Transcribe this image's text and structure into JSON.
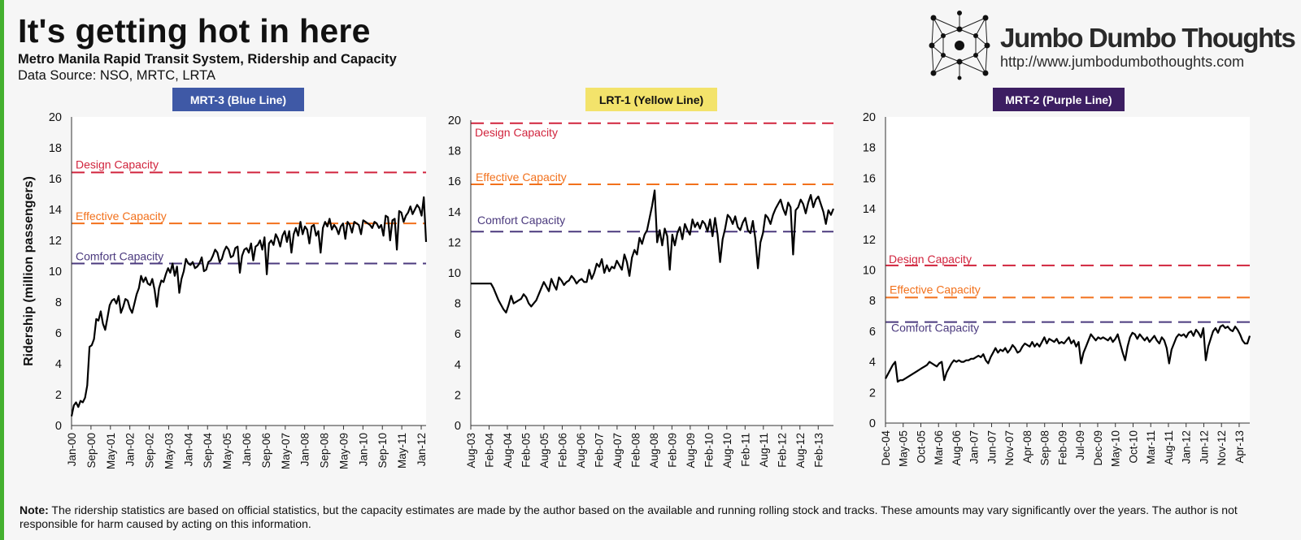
{
  "header": {
    "title": "It's getting hot in here",
    "subtitle": "Metro Manila Rapid Transit System, Ridership and Capacity",
    "source": "Data Source: NSO, MRTC, LRTA"
  },
  "brand": {
    "name": "Jumbo Dumbo Thoughts",
    "url": "http://www.jumbodumbothoughts.com",
    "icon": "network-logo-icon"
  },
  "note": {
    "label": "Note:",
    "text": "The ridership statistics are based on official statistics, but the capacity estimates are made by the author based on the available and running rolling stock and tracks. These amounts may vary significantly over the years. The author is not responsible for harm caused by acting on this information."
  },
  "colors": {
    "accent_green": "#44b02f",
    "design": "#d1243d",
    "effective": "#f2711c",
    "comfort": "#4b3a7e",
    "line": "#000000"
  },
  "chart_data": [
    {
      "type": "line",
      "title": "MRT-3 (Blue Line)",
      "title_bg": "#3f59a6",
      "title_color": "#ffffff",
      "ylabel": "Ridership (million passengers)",
      "ylim": [
        0,
        20
      ],
      "yticks": [
        0,
        2,
        4,
        6,
        8,
        10,
        12,
        14,
        16,
        18,
        20
      ],
      "grid": false,
      "x_start": "2000-01",
      "x_end": "2012-03",
      "xticks": [
        "Jan-00",
        "Sep-00",
        "May-01",
        "Jan-02",
        "Sep-02",
        "May-03",
        "Jan-04",
        "Sep-04",
        "May-05",
        "Jan-06",
        "Sep-06",
        "May-07",
        "Jan-08",
        "Sep-08",
        "May-09",
        "Jan-10",
        "Sep-10",
        "May-11",
        "Jan-12"
      ],
      "capacity": [
        {
          "name": "Design Capacity",
          "value": 16.4,
          "color": "#d1243d"
        },
        {
          "name": "Effective Capacity",
          "value": 13.1,
          "color": "#f2711c"
        },
        {
          "name": "Comfort Capacity",
          "value": 10.5,
          "color": "#4b3a7e"
        }
      ],
      "series": [
        {
          "values": [
            0.6,
            1.3,
            1.5,
            1.2,
            1.6,
            1.5,
            1.8,
            2.6,
            5.1,
            5.2,
            5.6,
            6.9,
            6.8,
            7.4,
            6.6,
            6.2,
            7.0,
            7.8,
            8.1,
            8.2,
            7.9,
            8.4,
            7.3,
            7.7,
            8.2,
            8.1,
            7.6,
            7.3,
            7.9,
            8.5,
            8.9,
            9.7,
            9.3,
            9.6,
            9.2,
            9.1,
            9.5,
            8.8,
            7.7,
            8.9,
            9.4,
            9.3,
            9.8,
            10.2,
            9.9,
            10.5,
            9.7,
            10.3,
            8.6,
            9.5,
            10.0,
            10.8,
            10.5,
            10.4,
            10.6,
            10.2,
            10.3,
            10.5,
            10.9,
            10.0,
            10.1,
            10.6,
            10.7,
            11.0,
            11.4,
            11.2,
            10.6,
            10.8,
            11.3,
            11.6,
            11.4,
            10.9,
            11.0,
            11.5,
            11.6,
            9.9,
            11.0,
            11.4,
            11.5,
            11.2,
            11.8,
            10.7,
            11.6,
            11.7,
            12.0,
            11.4,
            12.2,
            9.8,
            11.8,
            12.0,
            11.7,
            12.4,
            12.1,
            11.6,
            12.3,
            12.6,
            11.9,
            12.6,
            11.2,
            12.4,
            12.8,
            12.3,
            13.2,
            12.4,
            12.9,
            12.7,
            11.8,
            12.9,
            13.0,
            12.3,
            12.6,
            11.2,
            12.8,
            13.2,
            12.9,
            13.4,
            12.7,
            13.0,
            12.8,
            12.4,
            12.9,
            13.1,
            12.1,
            13.2,
            13.0,
            12.5,
            13.2,
            13.1,
            13.0,
            12.4,
            13.3,
            13.2,
            13.1,
            13.0,
            12.8,
            13.2,
            13.1,
            12.8,
            13.0,
            12.3,
            13.6,
            13.5,
            12.0,
            13.3,
            13.4,
            11.4,
            13.9,
            13.8,
            13.2,
            13.6,
            13.8,
            14.2,
            13.7,
            14.0,
            14.3,
            14.1,
            13.6,
            14.8,
            11.9
          ]
        }
      ]
    },
    {
      "type": "line",
      "title": "LRT-1 (Yellow Line)",
      "title_bg": "#f3e36b",
      "title_color": "#111111",
      "ylim": [
        0,
        20
      ],
      "yticks": [
        0,
        2,
        4,
        6,
        8,
        10,
        12,
        14,
        16,
        18,
        20
      ],
      "grid": false,
      "x_start": "2003-08",
      "x_end": "2013-07",
      "xticks": [
        "Aug-03",
        "Feb-04",
        "Aug-04",
        "Feb-05",
        "Aug-05",
        "Feb-06",
        "Aug-06",
        "Feb-07",
        "Aug-07",
        "Feb-08",
        "Aug-08",
        "Feb-09",
        "Aug-09",
        "Feb-10",
        "Aug-10",
        "Feb-11",
        "Aug-11",
        "Feb-12",
        "Aug-12",
        "Feb-13"
      ],
      "capacity": [
        {
          "name": "Design Capacity",
          "value": 19.8,
          "color": "#d1243d"
        },
        {
          "name": "Effective Capacity",
          "value": 15.8,
          "color": "#f2711c"
        },
        {
          "name": "Comfort Capacity",
          "value": 12.7,
          "color": "#4b3a7e"
        }
      ],
      "series": [
        {
          "values": [
            9.3,
            9.3,
            9.3,
            9.3,
            9.3,
            9.3,
            9.3,
            9.3,
            9.3,
            9.0,
            8.6,
            8.2,
            7.9,
            7.6,
            7.4,
            7.9,
            8.5,
            8.0,
            8.1,
            8.2,
            8.3,
            8.6,
            8.4,
            8.0,
            7.8,
            8.0,
            8.2,
            8.6,
            9.0,
            9.4,
            9.1,
            8.8,
            9.6,
            9.2,
            8.9,
            9.7,
            9.5,
            9.2,
            9.4,
            9.5,
            9.8,
            9.6,
            9.3,
            9.5,
            9.6,
            9.4,
            9.4,
            10.2,
            9.6,
            10.0,
            10.6,
            10.4,
            10.9,
            10.0,
            10.5,
            10.1,
            10.4,
            10.3,
            10.8,
            10.5,
            10.2,
            11.2,
            10.7,
            9.8,
            11.0,
            11.5,
            11.2,
            12.3,
            11.9,
            12.5,
            12.8,
            13.6,
            14.4,
            15.4,
            12.0,
            12.8,
            11.8,
            12.9,
            12.4,
            10.2,
            12.5,
            11.8,
            12.6,
            13.0,
            12.2,
            13.2,
            12.8,
            12.5,
            13.5,
            13.0,
            13.3,
            12.9,
            13.4,
            13.2,
            12.7,
            13.5,
            12.4,
            13.6,
            12.5,
            10.7,
            12.2,
            12.9,
            13.8,
            13.6,
            13.2,
            13.7,
            13.0,
            12.8,
            13.3,
            13.6,
            12.8,
            12.6,
            13.4,
            12.2,
            10.3,
            12.0,
            12.6,
            13.8,
            13.6,
            13.2,
            13.8,
            14.2,
            14.5,
            14.8,
            14.2,
            13.8,
            14.6,
            14.3,
            11.2,
            14.1,
            14.3,
            14.8,
            14.5,
            13.9,
            14.6,
            15.1,
            14.3,
            14.8,
            15.0,
            14.5,
            14.0,
            13.2,
            14.1,
            13.8,
            14.2
          ]
        }
      ]
    },
    {
      "type": "line",
      "title": "MRT-2 (Purple Line)",
      "title_bg": "#3c1e62",
      "title_color": "#ffffff",
      "ylim": [
        0,
        20
      ],
      "yticks": [
        0,
        2,
        4,
        6,
        8,
        10,
        12,
        14,
        16,
        18,
        20
      ],
      "grid": false,
      "x_start": "2004-12",
      "x_end": "2013-07",
      "xticks": [
        "Dec-04",
        "May-05",
        "Oct-05",
        "Mar-06",
        "Aug-06",
        "Jan-07",
        "Jun-07",
        "Nov-07",
        "Apr-08",
        "Sep-08",
        "Feb-09",
        "Jul-09",
        "Dec-09",
        "May-10",
        "Oct-10",
        "Mar-11",
        "Aug-11",
        "Jan-12",
        "Jun-12",
        "Nov-12",
        "Apr-13"
      ],
      "capacity": [
        {
          "name": "Design Capacity",
          "value": 10.3,
          "color": "#d1243d"
        },
        {
          "name": "Effective Capacity",
          "value": 8.2,
          "color": "#f2711c"
        },
        {
          "name": "Comfort Capacity",
          "value": 6.6,
          "color": "#4b3a7e"
        }
      ],
      "series": [
        {
          "values": [
            2.9,
            3.2,
            3.5,
            3.8,
            4.0,
            2.7,
            2.8,
            2.8,
            2.9,
            3.0,
            3.1,
            3.2,
            3.3,
            3.4,
            3.5,
            3.6,
            3.7,
            3.8,
            4.0,
            3.9,
            3.8,
            3.7,
            3.9,
            4.0,
            2.8,
            3.3,
            3.6,
            3.9,
            4.1,
            4.0,
            4.1,
            4.0,
            4.0,
            4.1,
            4.1,
            4.2,
            4.2,
            4.3,
            4.4,
            4.3,
            4.5,
            4.1,
            3.9,
            4.3,
            4.6,
            4.9,
            4.6,
            4.8,
            4.7,
            4.9,
            4.6,
            4.8,
            5.1,
            4.9,
            4.6,
            4.7,
            5.0,
            5.2,
            5.1,
            5.0,
            5.3,
            5.0,
            5.2,
            5.0,
            5.3,
            5.6,
            5.2,
            5.5,
            5.4,
            5.3,
            5.5,
            5.2,
            5.3,
            5.2,
            5.4,
            5.6,
            5.2,
            5.4,
            5.0,
            5.3,
            3.9,
            4.6,
            5.0,
            5.4,
            5.8,
            5.6,
            5.4,
            5.6,
            5.5,
            5.6,
            5.5,
            5.4,
            5.6,
            5.3,
            5.5,
            5.8,
            5.2,
            4.6,
            4.1,
            5.0,
            5.6,
            5.9,
            5.8,
            5.5,
            5.8,
            5.6,
            5.4,
            5.6,
            5.3,
            5.5,
            5.7,
            5.4,
            5.2,
            5.6,
            5.4,
            4.9,
            3.9,
            4.8,
            5.2,
            5.6,
            5.8,
            5.7,
            5.8,
            5.6,
            5.9,
            6.0,
            5.7,
            6.1,
            5.9,
            5.6,
            6.2,
            4.1,
            5.0,
            5.5,
            6.0,
            6.2,
            5.9,
            6.3,
            6.4,
            6.2,
            6.3,
            6.1,
            6.0,
            6.3,
            6.1,
            5.8,
            5.4,
            5.2,
            5.2,
            5.7
          ]
        }
      ]
    }
  ]
}
